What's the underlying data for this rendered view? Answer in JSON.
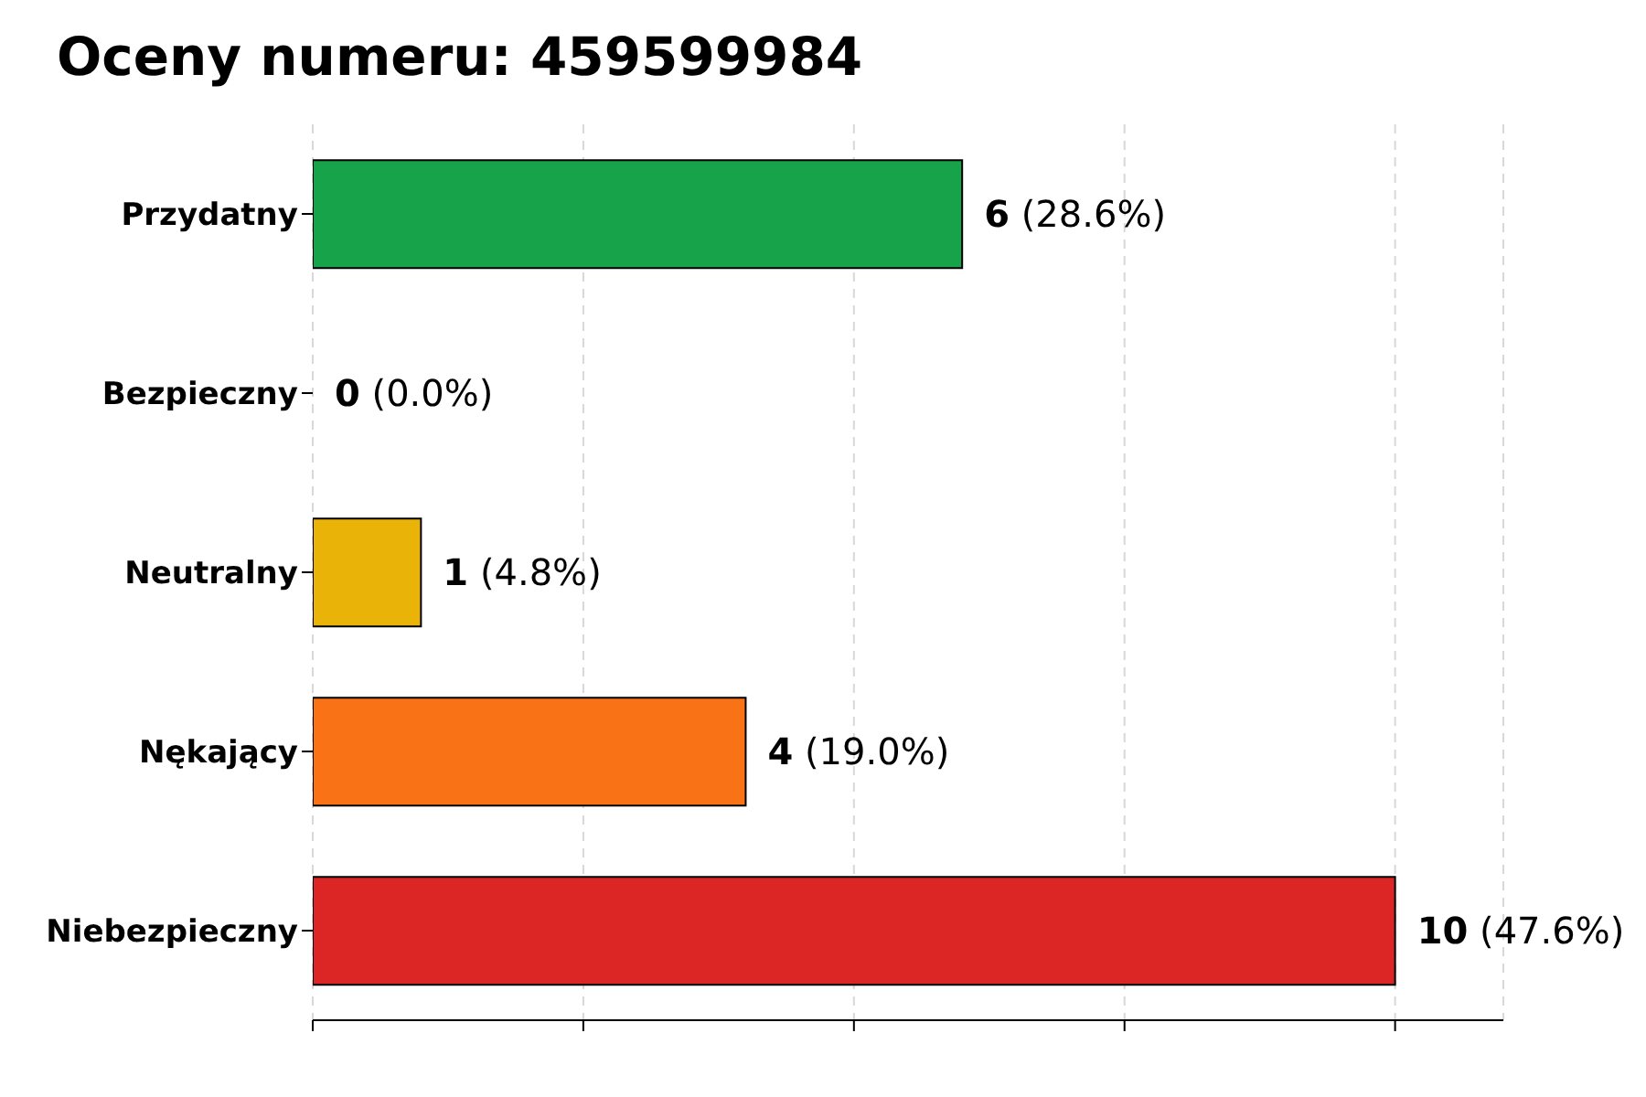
{
  "chart_data": {
    "type": "bar",
    "orientation": "horizontal",
    "title": "Oceny numeru: 459599984",
    "categories": [
      "Przydatny",
      "Bezpieczny",
      "Neutralny",
      "Nękający",
      "Niebezpieczny"
    ],
    "values": [
      6,
      0,
      1,
      4,
      10
    ],
    "colors": [
      "#16a34a",
      "#9ca3af",
      "#eab308",
      "#f97316",
      "#dc2626"
    ],
    "value_labels": [
      "6 (28.6%)",
      "0 (0.0%)",
      "1 (4.8%)",
      "4 (19.0%)",
      "10 (47.6%)"
    ],
    "xlim": [
      0,
      11
    ],
    "xticks": [
      {
        "value": 0,
        "label": null
      },
      {
        "value": 2.5,
        "label": null
      },
      {
        "value": 5,
        "label": null
      },
      {
        "value": 7.5,
        "label": null
      },
      {
        "value": 10,
        "label": null
      }
    ],
    "tick_labels": "y",
    "grid": "x",
    "legend": false
  }
}
